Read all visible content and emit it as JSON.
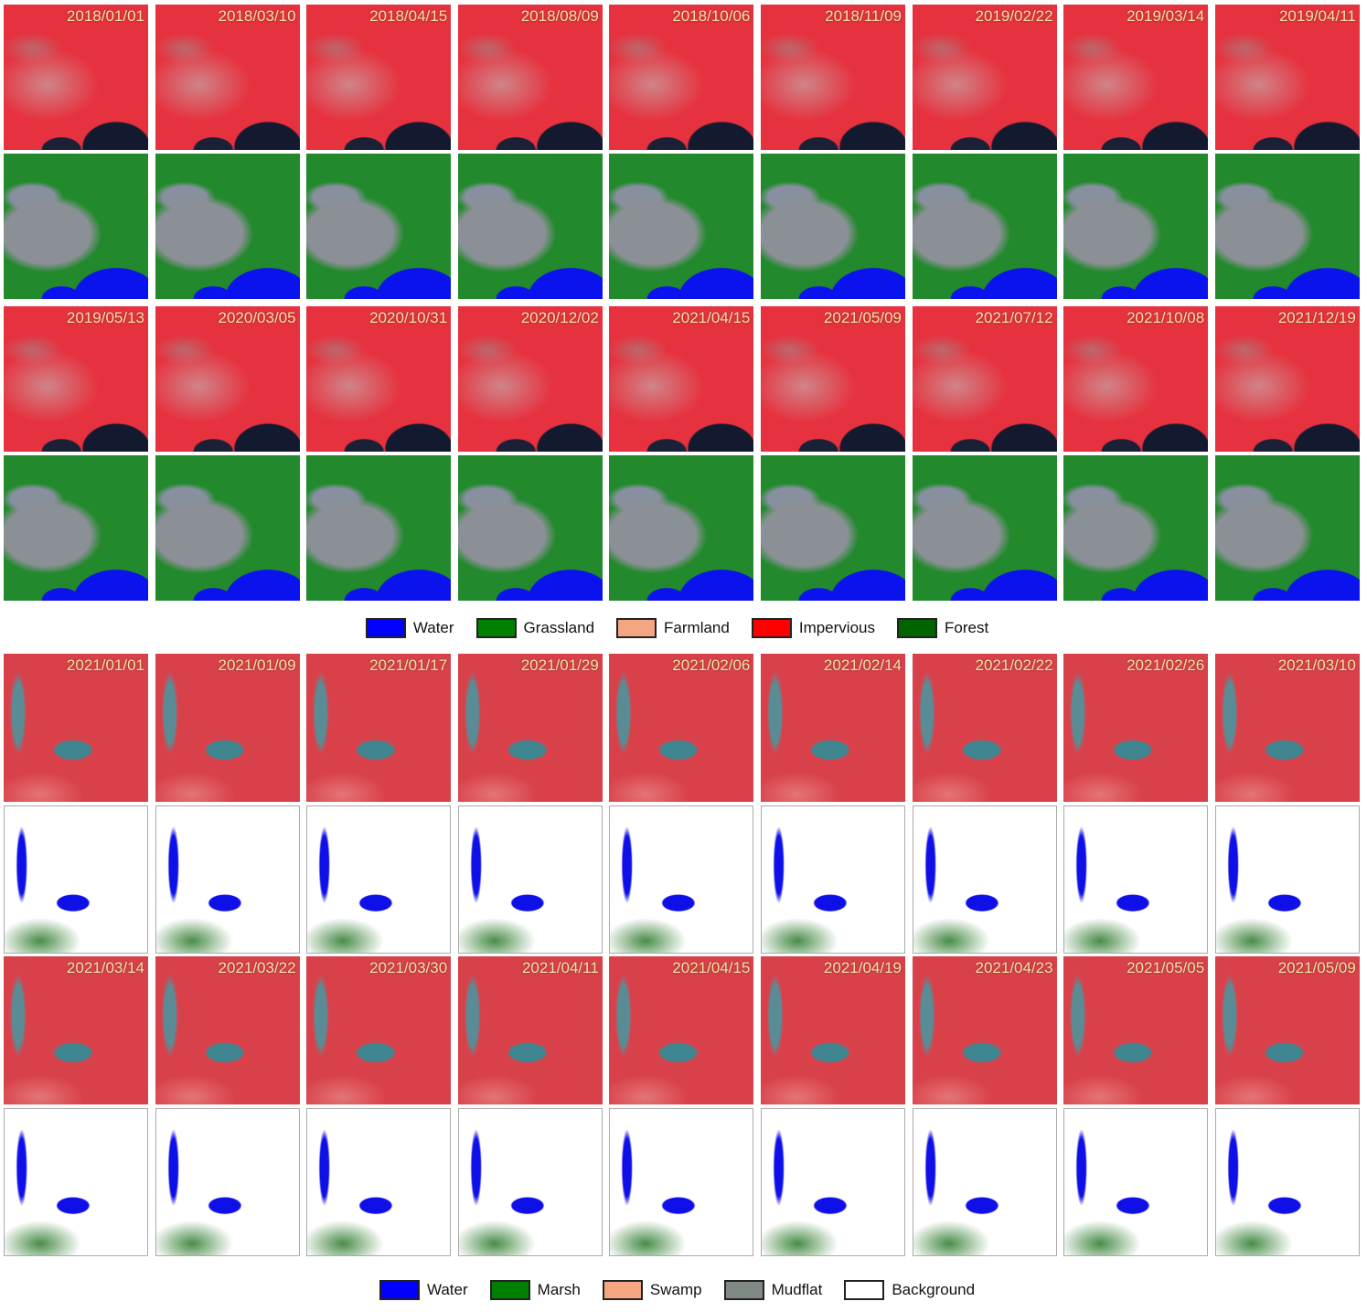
{
  "panels": [
    {
      "dates": [
        "2018/01/01",
        "2018/03/10",
        "2018/04/15",
        "2018/08/09",
        "2018/10/06",
        "2018/11/09",
        "2019/02/22",
        "2019/03/14",
        "2019/04/11",
        "2019/05/13",
        "2020/03/05",
        "2020/10/31",
        "2020/12/02",
        "2021/04/15",
        "2021/05/09",
        "2021/07/12",
        "2021/10/08",
        "2021/12/19"
      ],
      "legend": [
        {
          "label": "Water",
          "color": "#0000ff"
        },
        {
          "label": "Grassland",
          "color": "#008000"
        },
        {
          "label": "Farmland",
          "color": "#f4a582"
        },
        {
          "label": "Impervious",
          "color": "#ff0000"
        },
        {
          "label": "Forest",
          "color": "#006400"
        }
      ]
    },
    {
      "dates": [
        "2021/01/01",
        "2021/01/09",
        "2021/01/17",
        "2021/01/29",
        "2021/02/06",
        "2021/02/14",
        "2021/02/22",
        "2021/02/26",
        "2021/03/10",
        "2021/03/14",
        "2021/03/22",
        "2021/03/30",
        "2021/04/11",
        "2021/04/15",
        "2021/04/19",
        "2021/04/23",
        "2021/05/05",
        "2021/05/09"
      ],
      "legend": [
        {
          "label": "Water",
          "color": "#0000ff"
        },
        {
          "label": "Marsh",
          "color": "#008000"
        },
        {
          "label": "Swamp",
          "color": "#f4a582"
        },
        {
          "label": "Mudflat",
          "color": "#7f8a84"
        },
        {
          "label": "Background",
          "color": "#ffffff"
        }
      ]
    }
  ]
}
